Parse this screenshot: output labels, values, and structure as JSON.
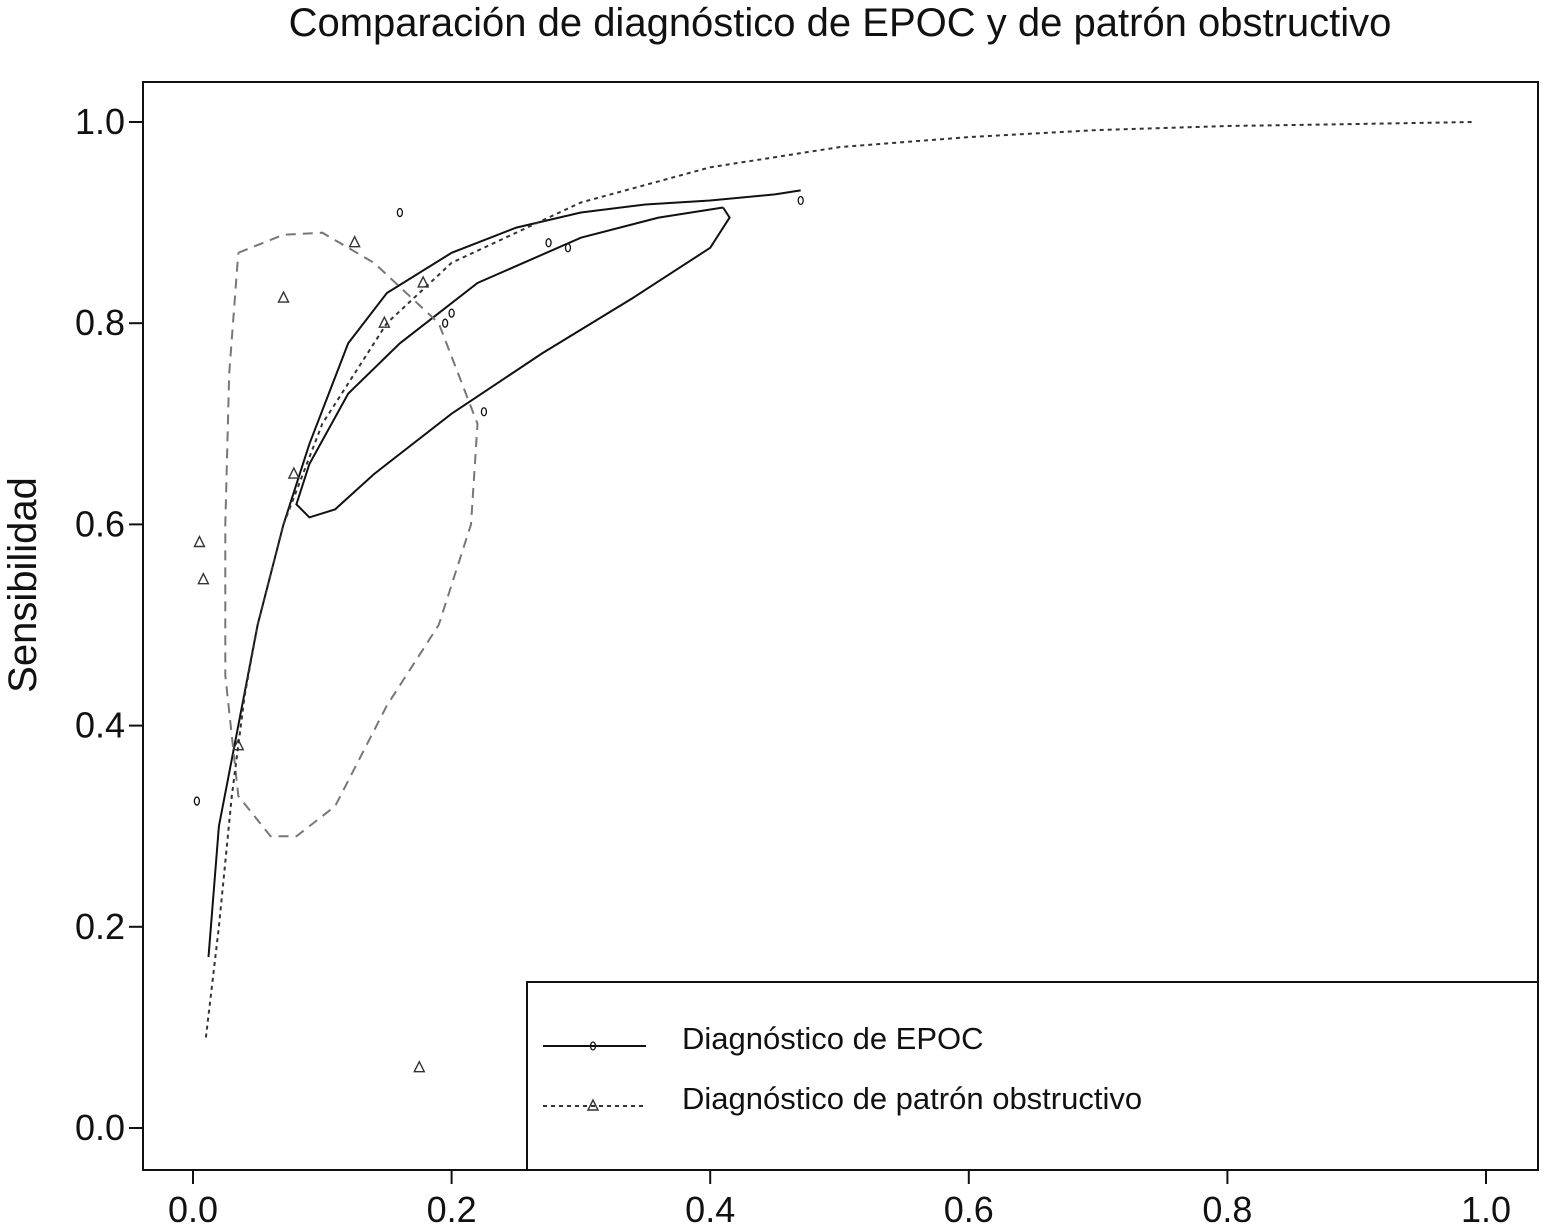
{
  "chart_data": {
    "type": "scatter",
    "title": "Comparación de diagnóstico de EPOC y de patrón obstructivo",
    "xlabel": "",
    "ylabel": "Sensibilidad",
    "xlim": [
      0.0,
      1.05
    ],
    "ylim": [
      -0.04,
      1.04
    ],
    "xticks": [
      0.0,
      0.2,
      0.4,
      0.6,
      0.8,
      1.0
    ],
    "xtick_labels": [
      "0.0",
      "0.2",
      "0.4",
      "0.6",
      "0.8",
      "1.0"
    ],
    "yticks": [
      0.0,
      0.2,
      0.4,
      0.6,
      0.8,
      1.0
    ],
    "ytick_labels": [
      "0.0",
      "0.2",
      "0.4",
      "0.6",
      "0.8",
      "1.0"
    ],
    "grid": false,
    "legend_position": "bottom-right",
    "series": [
      {
        "name": "Diagnóstico de EPOC",
        "marker": "circle",
        "line_style": "solid",
        "color": "#111111",
        "points": [
          [
            0.003,
            0.325
          ],
          [
            0.16,
            0.91
          ],
          [
            0.275,
            0.88
          ],
          [
            0.29,
            0.875
          ],
          [
            0.2,
            0.81
          ],
          [
            0.195,
            0.8
          ],
          [
            0.225,
            0.712
          ],
          [
            0.47,
            0.922
          ]
        ],
        "sroc_curve": [
          [
            0.012,
            0.17
          ],
          [
            0.02,
            0.3
          ],
          [
            0.035,
            0.4
          ],
          [
            0.05,
            0.5
          ],
          [
            0.07,
            0.6
          ],
          [
            0.09,
            0.68
          ],
          [
            0.12,
            0.78
          ],
          [
            0.15,
            0.83
          ],
          [
            0.2,
            0.87
          ],
          [
            0.25,
            0.895
          ],
          [
            0.3,
            0.91
          ],
          [
            0.35,
            0.918
          ],
          [
            0.4,
            0.922
          ],
          [
            0.45,
            0.928
          ],
          [
            0.47,
            0.932
          ]
        ],
        "confidence_region": [
          [
            0.41,
            0.915
          ],
          [
            0.36,
            0.905
          ],
          [
            0.3,
            0.885
          ],
          [
            0.22,
            0.84
          ],
          [
            0.16,
            0.78
          ],
          [
            0.12,
            0.73
          ],
          [
            0.09,
            0.66
          ],
          [
            0.08,
            0.62
          ],
          [
            0.09,
            0.607
          ],
          [
            0.11,
            0.615
          ],
          [
            0.14,
            0.65
          ],
          [
            0.2,
            0.71
          ],
          [
            0.27,
            0.77
          ],
          [
            0.34,
            0.825
          ],
          [
            0.4,
            0.875
          ],
          [
            0.415,
            0.905
          ],
          [
            0.41,
            0.915
          ]
        ]
      },
      {
        "name": "Diagnóstico de patrón obstructivo",
        "marker": "triangle",
        "line_style": "dashed",
        "color": "#333333",
        "points": [
          [
            0.005,
            0.582
          ],
          [
            0.008,
            0.545
          ],
          [
            0.07,
            0.825
          ],
          [
            0.078,
            0.65
          ],
          [
            0.125,
            0.88
          ],
          [
            0.148,
            0.8
          ],
          [
            0.178,
            0.84
          ],
          [
            0.175,
            0.06
          ],
          [
            0.035,
            0.38
          ]
        ],
        "sroc_curve": [
          [
            0.01,
            0.09
          ],
          [
            0.02,
            0.2
          ],
          [
            0.03,
            0.33
          ],
          [
            0.04,
            0.43
          ],
          [
            0.05,
            0.5
          ],
          [
            0.07,
            0.6
          ],
          [
            0.1,
            0.7
          ],
          [
            0.15,
            0.8
          ],
          [
            0.2,
            0.86
          ],
          [
            0.3,
            0.92
          ],
          [
            0.4,
            0.955
          ],
          [
            0.5,
            0.975
          ],
          [
            0.6,
            0.985
          ],
          [
            0.7,
            0.992
          ],
          [
            0.8,
            0.996
          ],
          [
            0.9,
            0.998
          ],
          [
            0.99,
            1.0
          ]
        ],
        "confidence_region": [
          [
            0.035,
            0.87
          ],
          [
            0.07,
            0.888
          ],
          [
            0.1,
            0.89
          ],
          [
            0.14,
            0.86
          ],
          [
            0.19,
            0.8
          ],
          [
            0.22,
            0.7
          ],
          [
            0.215,
            0.6
          ],
          [
            0.19,
            0.5
          ],
          [
            0.15,
            0.42
          ],
          [
            0.11,
            0.32
          ],
          [
            0.08,
            0.29
          ],
          [
            0.06,
            0.29
          ],
          [
            0.035,
            0.33
          ],
          [
            0.025,
            0.45
          ],
          [
            0.025,
            0.6
          ],
          [
            0.028,
            0.75
          ],
          [
            0.035,
            0.87
          ]
        ]
      }
    ]
  }
}
